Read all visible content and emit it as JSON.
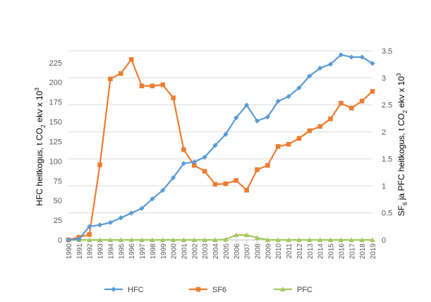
{
  "chart_data": {
    "type": "line",
    "categories": [
      "1990",
      "1991",
      "1992",
      "1993",
      "1994",
      "1995",
      "1996",
      "1997",
      "1998",
      "1999",
      "2000",
      "2001",
      "2002",
      "2003",
      "2004",
      "2005",
      "2006",
      "2007",
      "2008",
      "2009",
      "2010",
      "2011",
      "2012",
      "2013",
      "2014",
      "2015",
      "2016",
      "2017",
      "2018",
      "2019"
    ],
    "y_left": {
      "label_parts": [
        "HFC heitkogus, t CO",
        "2",
        " ekv x 10",
        "3"
      ],
      "ylim": [
        0,
        240
      ],
      "ticks": [
        "0",
        "25",
        "50",
        "75",
        "100",
        "125",
        "150",
        "175",
        "200",
        "225"
      ],
      "tick_values": [
        0,
        25,
        50,
        75,
        100,
        125,
        150,
        175,
        200,
        225
      ]
    },
    "y_right": {
      "label_parts": [
        "SF",
        "6",
        " ja PFC heitkogus, t CO",
        "2",
        " ekv x 10",
        "3"
      ],
      "ylim": [
        0,
        3.5
      ],
      "ticks": [
        "0",
        "0.5",
        "1",
        "1.5",
        "2",
        "2.5",
        "3",
        "3.5"
      ],
      "tick_values": [
        0,
        0.5,
        1,
        1.5,
        2,
        2.5,
        3,
        3.5
      ]
    },
    "series": [
      {
        "name": "HFC",
        "axis": "left",
        "color": "#5B9BD5",
        "marker": "diamond",
        "values": [
          0,
          1,
          17,
          19,
          22,
          28,
          34,
          40,
          52,
          63,
          79,
          97,
          99,
          105,
          120,
          134,
          155,
          171,
          151,
          156,
          176,
          182,
          193,
          208,
          218,
          223,
          235,
          232,
          232,
          224
        ]
      },
      {
        "name": "SF6",
        "axis": "right",
        "color": "#ED7D31",
        "marker": "square",
        "values": [
          0,
          0.05,
          0.1,
          1.39,
          2.98,
          3.08,
          3.34,
          2.85,
          2.85,
          2.87,
          2.63,
          1.67,
          1.38,
          1.27,
          1.03,
          1.04,
          1.1,
          0.92,
          1.3,
          1.38,
          1.73,
          1.77,
          1.88,
          2.02,
          2.1,
          2.24,
          2.53,
          2.44,
          2.57,
          2.75
        ]
      },
      {
        "name": "PFC",
        "axis": "right",
        "color": "#A5C860",
        "marker": "triangle",
        "values": [
          0,
          0,
          0,
          0,
          0,
          0,
          0,
          0,
          0,
          0,
          0,
          0,
          0,
          0,
          0,
          0.01,
          0.09,
          0.09,
          0.04,
          0,
          0,
          0,
          0,
          0,
          0,
          0,
          0,
          0,
          0,
          0
        ]
      }
    ],
    "legend_position": "bottom",
    "grid": "horizontal"
  }
}
